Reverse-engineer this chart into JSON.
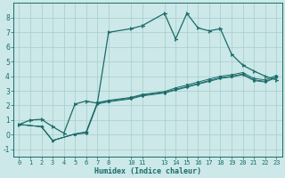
{
  "xlabel": "Humidex (Indice chaleur)",
  "bg_color": "#cce8e8",
  "grid_color": "#a8cccc",
  "line_color": "#1a6b6b",
  "xlim": [
    -0.5,
    23.5
  ],
  "ylim": [
    -1.5,
    9.0
  ],
  "xticks": [
    0,
    1,
    2,
    3,
    4,
    5,
    6,
    7,
    8,
    10,
    11,
    13,
    14,
    15,
    16,
    17,
    18,
    19,
    20,
    21,
    22,
    23
  ],
  "yticks": [
    -1,
    0,
    1,
    2,
    3,
    4,
    5,
    6,
    7,
    8
  ],
  "curve1_x": [
    0,
    1,
    2,
    3,
    4,
    5,
    6,
    7,
    8,
    10,
    11,
    13,
    14,
    15,
    16,
    17,
    18,
    19,
    20,
    21,
    22,
    23
  ],
  "curve1_y": [
    0.7,
    1.0,
    1.05,
    0.55,
    0.1,
    2.1,
    2.3,
    2.15,
    7.0,
    7.25,
    7.45,
    8.3,
    6.55,
    8.3,
    7.3,
    7.1,
    7.25,
    5.5,
    4.75,
    4.35,
    4.0,
    3.75
  ],
  "diag1_x": [
    0,
    2,
    3,
    5,
    6,
    7,
    8,
    10,
    11,
    13,
    14,
    15,
    16,
    17,
    18,
    19,
    20,
    21,
    22,
    23
  ],
  "diag1_y": [
    0.7,
    0.55,
    -0.4,
    0.05,
    0.2,
    2.2,
    2.35,
    2.55,
    2.75,
    2.95,
    3.2,
    3.4,
    3.6,
    3.8,
    4.0,
    4.1,
    4.25,
    3.85,
    3.75,
    4.05
  ],
  "diag2_x": [
    0,
    2,
    3,
    5,
    6,
    7,
    8,
    10,
    11,
    13,
    14,
    15,
    16,
    17,
    18,
    19,
    20,
    21,
    22,
    23
  ],
  "diag2_y": [
    0.7,
    0.55,
    -0.4,
    0.05,
    0.15,
    2.15,
    2.3,
    2.5,
    2.7,
    2.9,
    3.1,
    3.3,
    3.5,
    3.7,
    3.9,
    4.0,
    4.15,
    3.75,
    3.65,
    3.95
  ],
  "diag3_x": [
    0,
    2,
    3,
    5,
    6,
    7,
    8,
    10,
    11,
    13,
    14,
    15,
    16,
    17,
    18,
    19,
    20,
    21,
    22,
    23
  ],
  "diag3_y": [
    0.7,
    0.55,
    -0.4,
    0.05,
    0.1,
    2.1,
    2.25,
    2.45,
    2.65,
    2.85,
    3.05,
    3.25,
    3.45,
    3.65,
    3.85,
    3.95,
    4.1,
    3.7,
    3.6,
    3.9
  ]
}
